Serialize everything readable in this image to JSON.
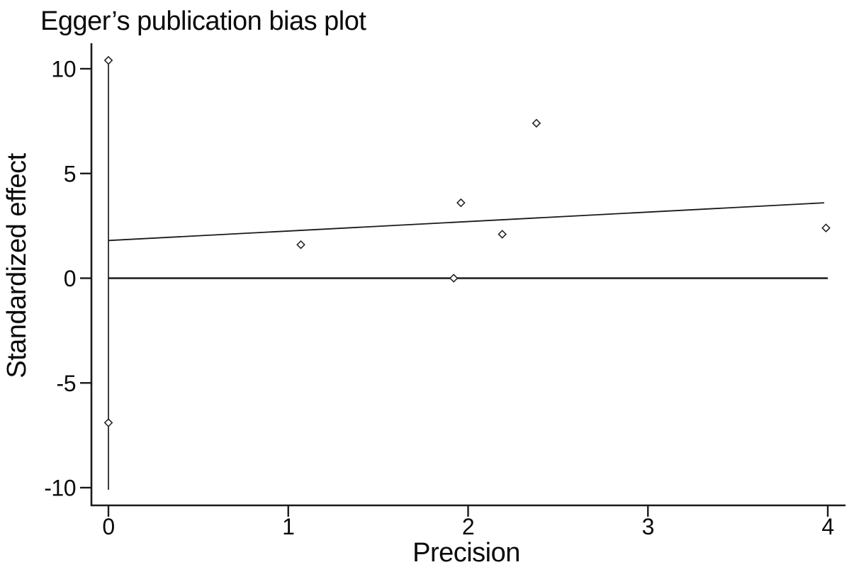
{
  "figure": {
    "title": "Egger’s publication bias plot",
    "xlabel": "Precision",
    "ylabel": "Standardized effect"
  },
  "chart_data": {
    "type": "scatter",
    "title": "Egger’s publication bias plot",
    "xlabel": "Precision",
    "ylabel": "Standardized effect",
    "xlim": [
      -0.1,
      4.1
    ],
    "ylim": [
      -10.9,
      11.2
    ],
    "xticks": [
      0,
      1,
      2,
      3,
      4
    ],
    "yticks": [
      10,
      5,
      0,
      -5,
      -10
    ],
    "grid": false,
    "legend": "none",
    "marker": "open-diamond",
    "points": [
      {
        "x": 0.0,
        "y": 10.4
      },
      {
        "x": 0.0,
        "y": -6.9
      },
      {
        "x": 1.07,
        "y": 1.6
      },
      {
        "x": 1.92,
        "y": 0.0
      },
      {
        "x": 1.96,
        "y": 3.6
      },
      {
        "x": 2.19,
        "y": 2.1
      },
      {
        "x": 2.38,
        "y": 7.4
      },
      {
        "x": 3.99,
        "y": 2.4
      }
    ],
    "regression_line": {
      "x1": 0.0,
      "y1": 1.8,
      "x2": 3.98,
      "y2": 3.6
    },
    "horizontal_line_y": 0,
    "vertical_line": {
      "x": 0,
      "y_from": -10.1,
      "y_to": 10.4
    },
    "colors": {
      "line": "#1a1a1a",
      "marker_stroke": "#1a1a1a",
      "marker_fill": "#ffffff",
      "background": "#ffffff"
    }
  }
}
